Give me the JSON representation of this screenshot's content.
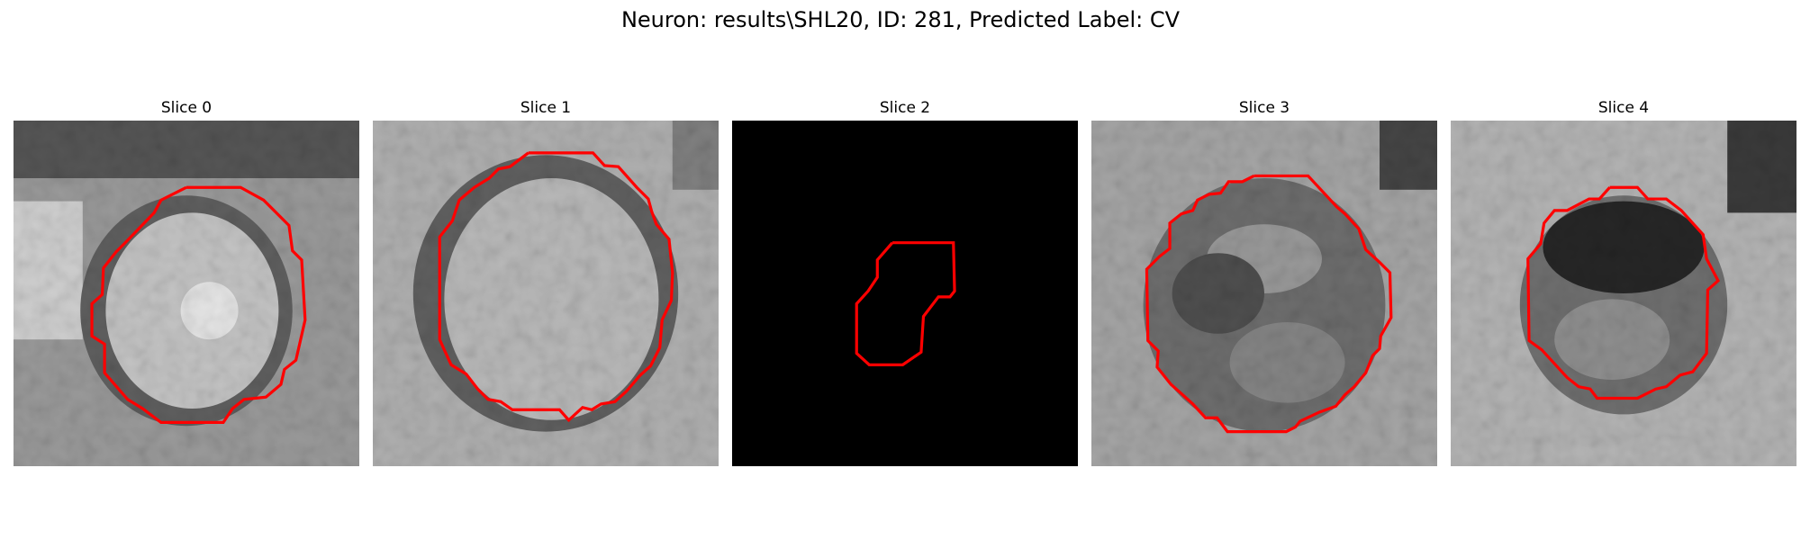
{
  "figure": {
    "title": "Neuron: results\\SHL20, ID: 281, Predicted Label: CV"
  },
  "slices": [
    {
      "title": "Slice 0"
    },
    {
      "title": "Slice 1"
    },
    {
      "title": "Slice 2"
    },
    {
      "title": "Slice 3"
    },
    {
      "title": "Slice 4"
    }
  ],
  "colors": {
    "contour": "#ff0000",
    "background": "#ffffff"
  }
}
